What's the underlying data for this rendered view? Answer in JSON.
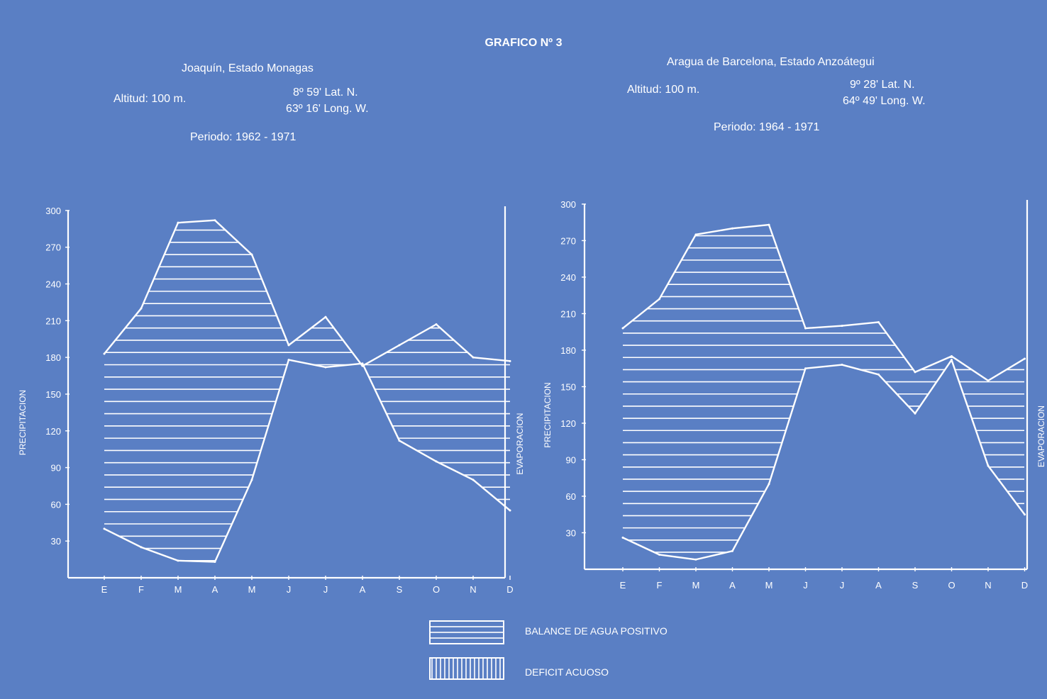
{
  "title": "GRAFICO Nº 3",
  "colors": {
    "background": "#5a7fc4",
    "ink": "#ffffff"
  },
  "legend": {
    "positive_label": "BALANCE DE AGUA POSITIVO",
    "deficit_label": "DEFICIT ACUOSO"
  },
  "chart_data": [
    {
      "type": "line",
      "title": "Joaquín, Estado Monagas",
      "altitude": "Altitud: 100 m.",
      "lat": "8º 59' Lat. N.",
      "long": "63º 16' Long. W.",
      "period": "Periodo: 1962 - 1971",
      "ylabel": "PRECIPITACION",
      "ylabel_right": "EVAPORACION",
      "ylim": [
        0,
        300
      ],
      "yticks": [
        30,
        60,
        90,
        120,
        150,
        180,
        210,
        240,
        270,
        300
      ],
      "categories": [
        "E",
        "F",
        "M",
        "A",
        "M",
        "J",
        "J",
        "A",
        "S",
        "O",
        "N",
        "D"
      ],
      "series": [
        {
          "role": "precipitation",
          "values": [
            40,
            25,
            14,
            13,
            80,
            178,
            172,
            175,
            112,
            95,
            80,
            55
          ]
        },
        {
          "role": "evaporation",
          "values": [
            183,
            220,
            290,
            292,
            264,
            190,
            213,
            173,
            190,
            207,
            180,
            177
          ]
        }
      ]
    },
    {
      "type": "line",
      "title": "Aragua de Barcelona, Estado Anzoátegui",
      "altitude": "Altitud: 100 m.",
      "lat": "9º 28' Lat. N.",
      "long": "64º 49' Long. W.",
      "period": "Periodo: 1964 - 1971",
      "ylabel": "PRECIPITACION",
      "ylabel_right": "EVAPORACION",
      "ylim": [
        0,
        300
      ],
      "yticks": [
        30,
        60,
        90,
        120,
        150,
        180,
        210,
        240,
        270,
        300
      ],
      "categories": [
        "E",
        "F",
        "M",
        "A",
        "M",
        "J",
        "J",
        "A",
        "S",
        "O",
        "N",
        "D"
      ],
      "series": [
        {
          "role": "precipitation",
          "values": [
            26,
            12,
            8,
            15,
            70,
            165,
            168,
            160,
            128,
            172,
            85,
            45
          ]
        },
        {
          "role": "evaporation",
          "values": [
            198,
            222,
            275,
            280,
            283,
            198,
            200,
            203,
            162,
            175,
            155,
            173
          ]
        }
      ]
    }
  ]
}
